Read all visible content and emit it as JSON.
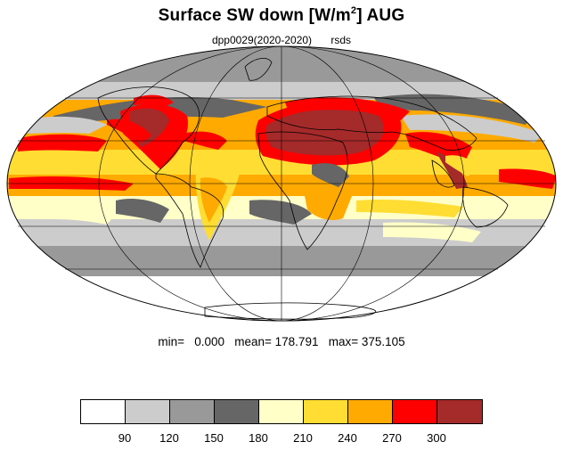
{
  "title": {
    "main": "Surface SW down [W/m",
    "sup": "2",
    "rest": "]  AUG"
  },
  "subtitle": {
    "run": "dpp0029(2020-2020)",
    "var": "rsds"
  },
  "stats": {
    "line": "min=   0.000   mean= 178.791   max= 375.105"
  },
  "legend": {
    "levels": [
      "90",
      "120",
      "150",
      "180",
      "210",
      "240",
      "270",
      "300"
    ],
    "colors": [
      "#ffffff",
      "#cccccc",
      "#999999",
      "#666666",
      "#ffffc8",
      "#ffdd33",
      "#ffaa00",
      "#ff0000",
      "#a52a2a"
    ]
  },
  "colors": {
    "coast": "#000000",
    "grid": "#000000",
    "outline": "#000000"
  }
}
